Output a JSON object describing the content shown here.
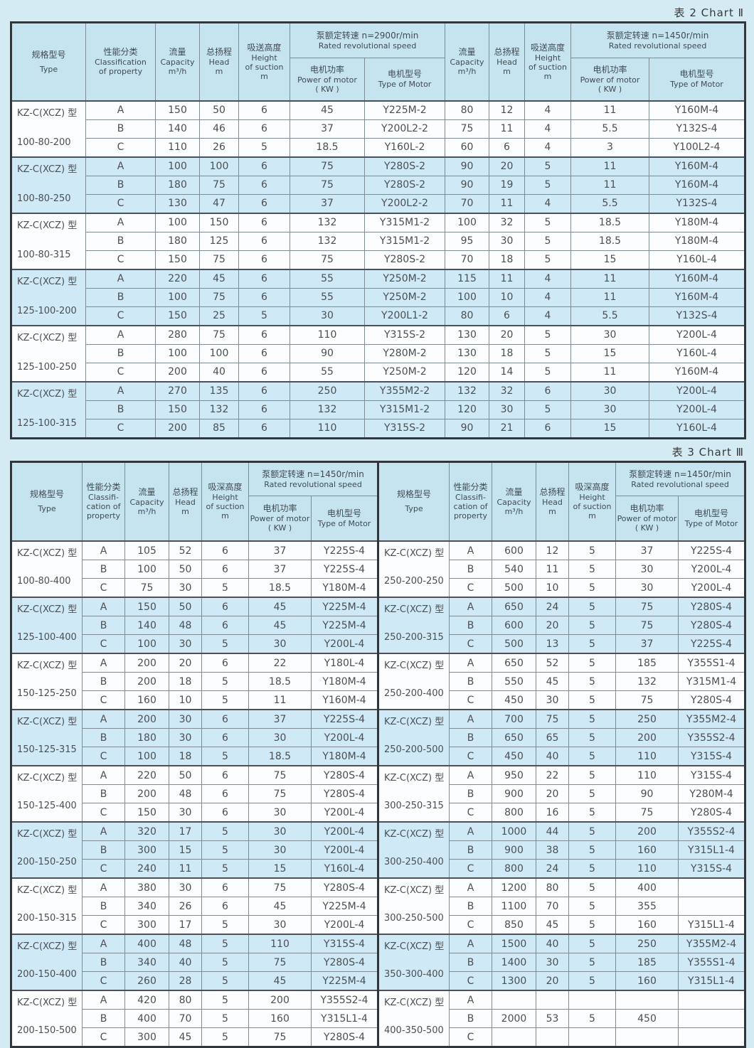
{
  "chart2": {
    "title": "表 2  Chart Ⅱ",
    "header": {
      "type_zh": "规格型号",
      "type_en": "Type",
      "class_zh": "性能分类",
      "class_en": "Classification\nof property",
      "capacity_zh": "流量",
      "capacity_en": "Capacity",
      "capacity_unit": "m³/h",
      "head_zh": "总扬程",
      "head_en": "Head",
      "head_unit": "m",
      "suction_zh": "吸送高度",
      "suction_en": "Height\nof suction",
      "suction_unit": "m",
      "speed2900_zh": "泵额定转速 n=2900r/min",
      "speed1450_zh": "泵额定转速 n=1450r/min",
      "speed_en": "Rated revolutional speed",
      "power_zh": "电机功率",
      "power_en": "Power of motor",
      "power_unit": "( KW )",
      "motor_zh": "电机型号",
      "motor_en": "Type of Motor"
    },
    "groups": [
      {
        "model": "KZ-C(XCZ) 型",
        "size": "100-80-200",
        "rows": [
          [
            "A",
            "150",
            "50",
            "6",
            "45",
            "Y225M-2",
            "80",
            "12",
            "4",
            "11",
            "Y160M-4"
          ],
          [
            "B",
            "140",
            "46",
            "6",
            "37",
            "Y200L2-2",
            "75",
            "11",
            "4",
            "5.5",
            "Y132S-4"
          ],
          [
            "C",
            "110",
            "26",
            "5",
            "18.5",
            "Y160L-2",
            "60",
            "6",
            "4",
            "3",
            "Y100L2-4"
          ]
        ]
      },
      {
        "model": "KZ-C(XCZ) 型",
        "size": "100-80-250",
        "rows": [
          [
            "A",
            "100",
            "100",
            "6",
            "75",
            "Y280S-2",
            "90",
            "20",
            "5",
            "11",
            "Y160M-4"
          ],
          [
            "B",
            "180",
            "75",
            "6",
            "75",
            "Y280S-2",
            "90",
            "19",
            "5",
            "11",
            "Y160M-4"
          ],
          [
            "C",
            "130",
            "47",
            "6",
            "37",
            "Y200L2-2",
            "70",
            "11",
            "4",
            "5.5",
            "Y132S-4"
          ]
        ]
      },
      {
        "model": "KZ-C(XCZ) 型",
        "size": "100-80-315",
        "rows": [
          [
            "A",
            "100",
            "150",
            "6",
            "132",
            "Y315M1-2",
            "100",
            "32",
            "5",
            "18.5",
            "Y180M-4"
          ],
          [
            "B",
            "180",
            "125",
            "6",
            "132",
            "Y315M1-2",
            "95",
            "30",
            "5",
            "18.5",
            "Y180M-4"
          ],
          [
            "C",
            "150",
            "75",
            "6",
            "75",
            "Y280S-2",
            "70",
            "18",
            "5",
            "15",
            "Y160L-4"
          ]
        ]
      },
      {
        "model": "KZ-C(XCZ) 型",
        "size": "125-100-200",
        "rows": [
          [
            "A",
            "220",
            "45",
            "6",
            "55",
            "Y250M-2",
            "115",
            "11",
            "4",
            "11",
            "Y160M-4"
          ],
          [
            "B",
            "100",
            "75",
            "6",
            "55",
            "Y250M-2",
            "100",
            "10",
            "4",
            "11",
            "Y160M-4"
          ],
          [
            "C",
            "150",
            "25",
            "5",
            "30",
            "Y200L1-2",
            "80",
            "6",
            "4",
            "5.5",
            "Y132S-4"
          ]
        ]
      },
      {
        "model": "KZ-C(XCZ) 型",
        "size": "125-100-250",
        "rows": [
          [
            "A",
            "280",
            "75",
            "6",
            "110",
            "Y315S-2",
            "130",
            "20",
            "5",
            "30",
            "Y200L-4"
          ],
          [
            "B",
            "100",
            "100",
            "6",
            "90",
            "Y280M-2",
            "130",
            "18",
            "5",
            "15",
            "Y160L-4"
          ],
          [
            "C",
            "200",
            "40",
            "6",
            "55",
            "Y250M-2",
            "120",
            "14",
            "5",
            "11",
            "Y160M-4"
          ]
        ]
      },
      {
        "model": "KZ-C(XCZ) 型",
        "size": "125-100-315",
        "rows": [
          [
            "A",
            "270",
            "135",
            "6",
            "250",
            "Y355M2-2",
            "132",
            "32",
            "6",
            "30",
            "Y200L-4"
          ],
          [
            "B",
            "150",
            "132",
            "6",
            "132",
            "Y315M1-2",
            "120",
            "30",
            "5",
            "30",
            "Y200L-4"
          ],
          [
            "C",
            "200",
            "85",
            "6",
            "110",
            "Y315S-2",
            "90",
            "21",
            "6",
            "15",
            "Y160L-4"
          ]
        ]
      }
    ]
  },
  "chart3": {
    "title": "表 3  Chart Ⅲ",
    "header": {
      "type_zh": "规格型号",
      "type_en": "Type",
      "class_zh": "性能分类",
      "class_en": "Classifi-\ncation of\nproperty",
      "capacity_zh": "流量",
      "capacity_en": "Capacity",
      "capacity_unit": "m³/h",
      "head_zh": "总扬程",
      "head_en": "Head",
      "head_unit": "m",
      "suction_zh": "吸深高度",
      "suction_en": "Height\nof suction",
      "suction_unit": "m",
      "speed1450_zh": "泵额定转速 n=1450r/min",
      "speed_en": "Rated revolutional speed",
      "power_zh": "电机功率",
      "power_en": "Power of motor",
      "power_unit": "( KW )",
      "motor_zh": "电机型号",
      "motor_en": "Type of Motor"
    },
    "groups": [
      {
        "left": {
          "model": "KZ-C(XCZ) 型",
          "size": "100-80-400",
          "rows": [
            [
              "A",
              "105",
              "52",
              "6",
              "37",
              "Y225S-4"
            ],
            [
              "B",
              "100",
              "50",
              "6",
              "37",
              "Y225S-4"
            ],
            [
              "C",
              "75",
              "30",
              "5",
              "18.5",
              "Y180M-4"
            ]
          ]
        },
        "right": {
          "model": "KZ-C(XCZ) 型",
          "size": "250-200-250",
          "rows": [
            [
              "A",
              "600",
              "12",
              "5",
              "37",
              "Y225S-4"
            ],
            [
              "B",
              "540",
              "11",
              "5",
              "30",
              "Y200L-4"
            ],
            [
              "C",
              "500",
              "10",
              "5",
              "30",
              "Y200L-4"
            ]
          ]
        }
      },
      {
        "left": {
          "model": "KZ-C(XCZ) 型",
          "size": "125-100-400",
          "rows": [
            [
              "A",
              "150",
              "50",
              "6",
              "45",
              "Y225M-4"
            ],
            [
              "B",
              "140",
              "48",
              "6",
              "45",
              "Y225M-4"
            ],
            [
              "C",
              "100",
              "30",
              "5",
              "30",
              "Y200L-4"
            ]
          ]
        },
        "right": {
          "model": "KZ-C(XCZ) 型",
          "size": "250-200-315",
          "rows": [
            [
              "A",
              "650",
              "24",
              "5",
              "75",
              "Y280S-4"
            ],
            [
              "B",
              "600",
              "20",
              "5",
              "75",
              "Y280S-4"
            ],
            [
              "C",
              "500",
              "13",
              "5",
              "37",
              "Y225S-4"
            ]
          ]
        }
      },
      {
        "left": {
          "model": "KZ-C(XCZ) 型",
          "size": "150-125-250",
          "rows": [
            [
              "A",
              "200",
              "20",
              "6",
              "22",
              "Y180L-4"
            ],
            [
              "B",
              "200",
              "18",
              "5",
              "18.5",
              "Y180M-4"
            ],
            [
              "C",
              "160",
              "10",
              "5",
              "11",
              "Y160M-4"
            ]
          ]
        },
        "right": {
          "model": "KZ-C(XCZ) 型",
          "size": "250-200-400",
          "rows": [
            [
              "A",
              "650",
              "52",
              "5",
              "185",
              "Y355S1-4"
            ],
            [
              "B",
              "550",
              "45",
              "5",
              "132",
              "Y315M1-4"
            ],
            [
              "C",
              "450",
              "30",
              "5",
              "75",
              "Y280S-4"
            ]
          ]
        }
      },
      {
        "left": {
          "model": "KZ-C(XCZ) 型",
          "size": "150-125-315",
          "rows": [
            [
              "A",
              "200",
              "30",
              "6",
              "37",
              "Y225S-4"
            ],
            [
              "B",
              "180",
              "30",
              "6",
              "30",
              "Y200L-4"
            ],
            [
              "C",
              "100",
              "18",
              "5",
              "18.5",
              "Y180M-4"
            ]
          ]
        },
        "right": {
          "model": "KZ-C(XCZ) 型",
          "size": "250-200-500",
          "rows": [
            [
              "A",
              "700",
              "75",
              "5",
              "250",
              "Y355M2-4"
            ],
            [
              "B",
              "650",
              "65",
              "5",
              "200",
              "Y355S2-4"
            ],
            [
              "C",
              "450",
              "40",
              "5",
              "110",
              "Y315S-4"
            ]
          ]
        }
      },
      {
        "left": {
          "model": "KZ-C(XCZ) 型",
          "size": "150-125-400",
          "rows": [
            [
              "A",
              "220",
              "50",
              "6",
              "75",
              "Y280S-4"
            ],
            [
              "B",
              "200",
              "48",
              "6",
              "75",
              "Y280S-4"
            ],
            [
              "C",
              "150",
              "30",
              "6",
              "30",
              "Y200L-4"
            ]
          ]
        },
        "right": {
          "model": "KZ-C(XCZ) 型",
          "size": "300-250-315",
          "rows": [
            [
              "A",
              "950",
              "22",
              "5",
              "110",
              "Y315S-4"
            ],
            [
              "B",
              "900",
              "20",
              "5",
              "90",
              "Y280M-4"
            ],
            [
              "C",
              "800",
              "16",
              "5",
              "75",
              "Y280S-4"
            ]
          ]
        }
      },
      {
        "left": {
          "model": "KZ-C(XCZ) 型",
          "size": "200-150-250",
          "rows": [
            [
              "A",
              "320",
              "17",
              "5",
              "30",
              "Y200L-4"
            ],
            [
              "B",
              "300",
              "15",
              "5",
              "30",
              "Y200L-4"
            ],
            [
              "C",
              "240",
              "11",
              "5",
              "15",
              "Y160L-4"
            ]
          ]
        },
        "right": {
          "model": "KZ-C(XCZ) 型",
          "size": "300-250-400",
          "rows": [
            [
              "A",
              "1000",
              "44",
              "5",
              "200",
              "Y355S2-4"
            ],
            [
              "B",
              "900",
              "38",
              "5",
              "160",
              "Y315L1-4"
            ],
            [
              "C",
              "800",
              "24",
              "5",
              "110",
              "Y315S-4"
            ]
          ]
        }
      },
      {
        "left": {
          "model": "KZ-C(XCZ) 型",
          "size": "200-150-315",
          "rows": [
            [
              "A",
              "380",
              "30",
              "6",
              "75",
              "Y280S-4"
            ],
            [
              "B",
              "340",
              "26",
              "6",
              "45",
              "Y225M-4"
            ],
            [
              "C",
              "300",
              "17",
              "5",
              "30",
              "Y200L-4"
            ]
          ]
        },
        "right": {
          "model": "KZ-C(XCZ) 型",
          "size": "300-250-500",
          "rows": [
            [
              "A",
              "1200",
              "80",
              "5",
              "400",
              ""
            ],
            [
              "B",
              "1100",
              "70",
              "5",
              "355",
              ""
            ],
            [
              "C",
              "850",
              "45",
              "5",
              "160",
              "Y315L1-4"
            ]
          ]
        }
      },
      {
        "left": {
          "model": "KZ-C(XCZ) 型",
          "size": "200-150-400",
          "rows": [
            [
              "A",
              "400",
              "48",
              "5",
              "110",
              "Y315S-4"
            ],
            [
              "B",
              "340",
              "40",
              "5",
              "75",
              "Y280S-4"
            ],
            [
              "C",
              "260",
              "28",
              "5",
              "45",
              "Y225M-4"
            ]
          ]
        },
        "right": {
          "model": "KZ-C(XCZ) 型",
          "size": "350-300-400",
          "rows": [
            [
              "A",
              "1500",
              "40",
              "5",
              "250",
              "Y355M2-4"
            ],
            [
              "B",
              "1400",
              "30",
              "5",
              "185",
              "Y355S1-4"
            ],
            [
              "C",
              "1300",
              "20",
              "5",
              "160",
              "Y315L1-4"
            ]
          ]
        }
      },
      {
        "left": {
          "model": "KZ-C(XCZ) 型",
          "size": "200-150-500",
          "rows": [
            [
              "A",
              "420",
              "80",
              "5",
              "200",
              "Y355S2-4"
            ],
            [
              "B",
              "400",
              "70",
              "5",
              "160",
              "Y315L1-4"
            ],
            [
              "C",
              "300",
              "45",
              "5",
              "75",
              "Y280S-4"
            ]
          ]
        },
        "right": {
          "model": "KZ-C(XCZ) 型",
          "size": "400-350-500",
          "rows": [
            [
              "A",
              "",
              "",
              "",
              "",
              ""
            ],
            [
              "B",
              "2000",
              "53",
              "5",
              "450",
              ""
            ],
            [
              "C",
              "",
              "",
              "",
              "",
              ""
            ]
          ]
        }
      }
    ]
  }
}
